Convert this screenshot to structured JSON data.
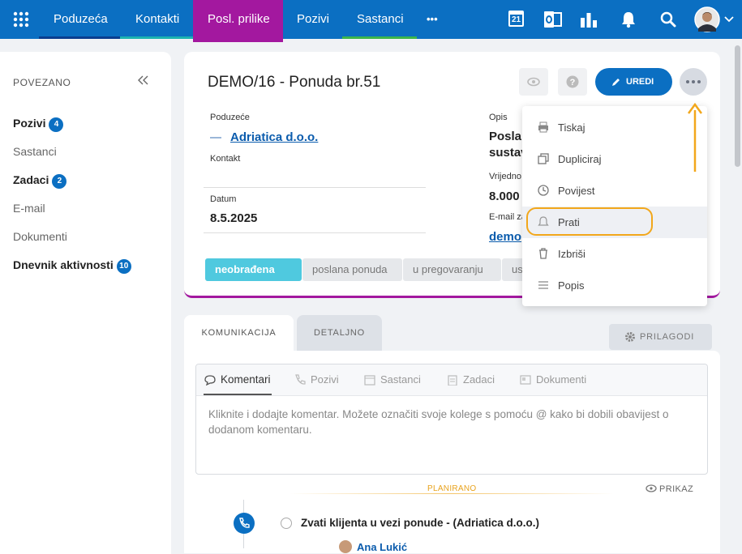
{
  "nav": {
    "items": [
      "Poduzeća",
      "Kontakti",
      "Posl. prilike",
      "Pozivi",
      "Sastanci"
    ],
    "more": "•••",
    "calendar_day": "21"
  },
  "sidebar": {
    "title": "POVEZANO",
    "items": [
      {
        "label": "Pozivi",
        "badge": 4
      },
      {
        "label": "Sastanci"
      },
      {
        "label": "Zadaci",
        "badge": 2
      },
      {
        "label": "E-mail"
      },
      {
        "label": "Dokumenti"
      },
      {
        "label": "Dnevnik aktivnosti",
        "badge": 10
      }
    ]
  },
  "record": {
    "title": "DEMO/16 - Ponuda br.51",
    "edit_button": "UREDI",
    "fields": [
      {
        "label": "Poduzeće",
        "value": "Adriatica d.o.o."
      },
      {
        "label": "Kontakt"
      },
      {
        "label": "Datum",
        "value": "8.5.2025"
      }
    ],
    "right_fields": [
      {
        "label": "Opis",
        "value_lines": [
          "Poslan",
          "sustav"
        ]
      },
      {
        "label": "Vrijedno",
        "value": "8.000"
      },
      {
        "label": "E-mail za",
        "value": "demo"
      }
    ],
    "stages": [
      "neobrađena",
      "poslana ponuda",
      "u pregovaranju",
      "us"
    ]
  },
  "menu": {
    "items": [
      "Tiskaj",
      "Dupliciraj",
      "Povijest",
      "Prati",
      "Izbriši",
      "Popis"
    ]
  },
  "tabs": {
    "items": [
      "KOMUNIKACIJA",
      "DETALJNO"
    ],
    "customize": "PRILAGODI"
  },
  "composer": {
    "tabs": [
      "Komentari",
      "Pozivi",
      "Sastanci",
      "Zadaci",
      "Dokumenti"
    ],
    "placeholder": "Kliknite i dodajte komentar. Možete označiti svoje kolege s pomoću @ kako bi dobili obavijest o dodanom komentaru."
  },
  "timeline": {
    "section": "PLANIRANO",
    "view": "PRIKAZ",
    "task": "Zvati klijenta u vezi ponude - (Adriatica d.o.o.)",
    "assignee": "Ana Lukić"
  }
}
